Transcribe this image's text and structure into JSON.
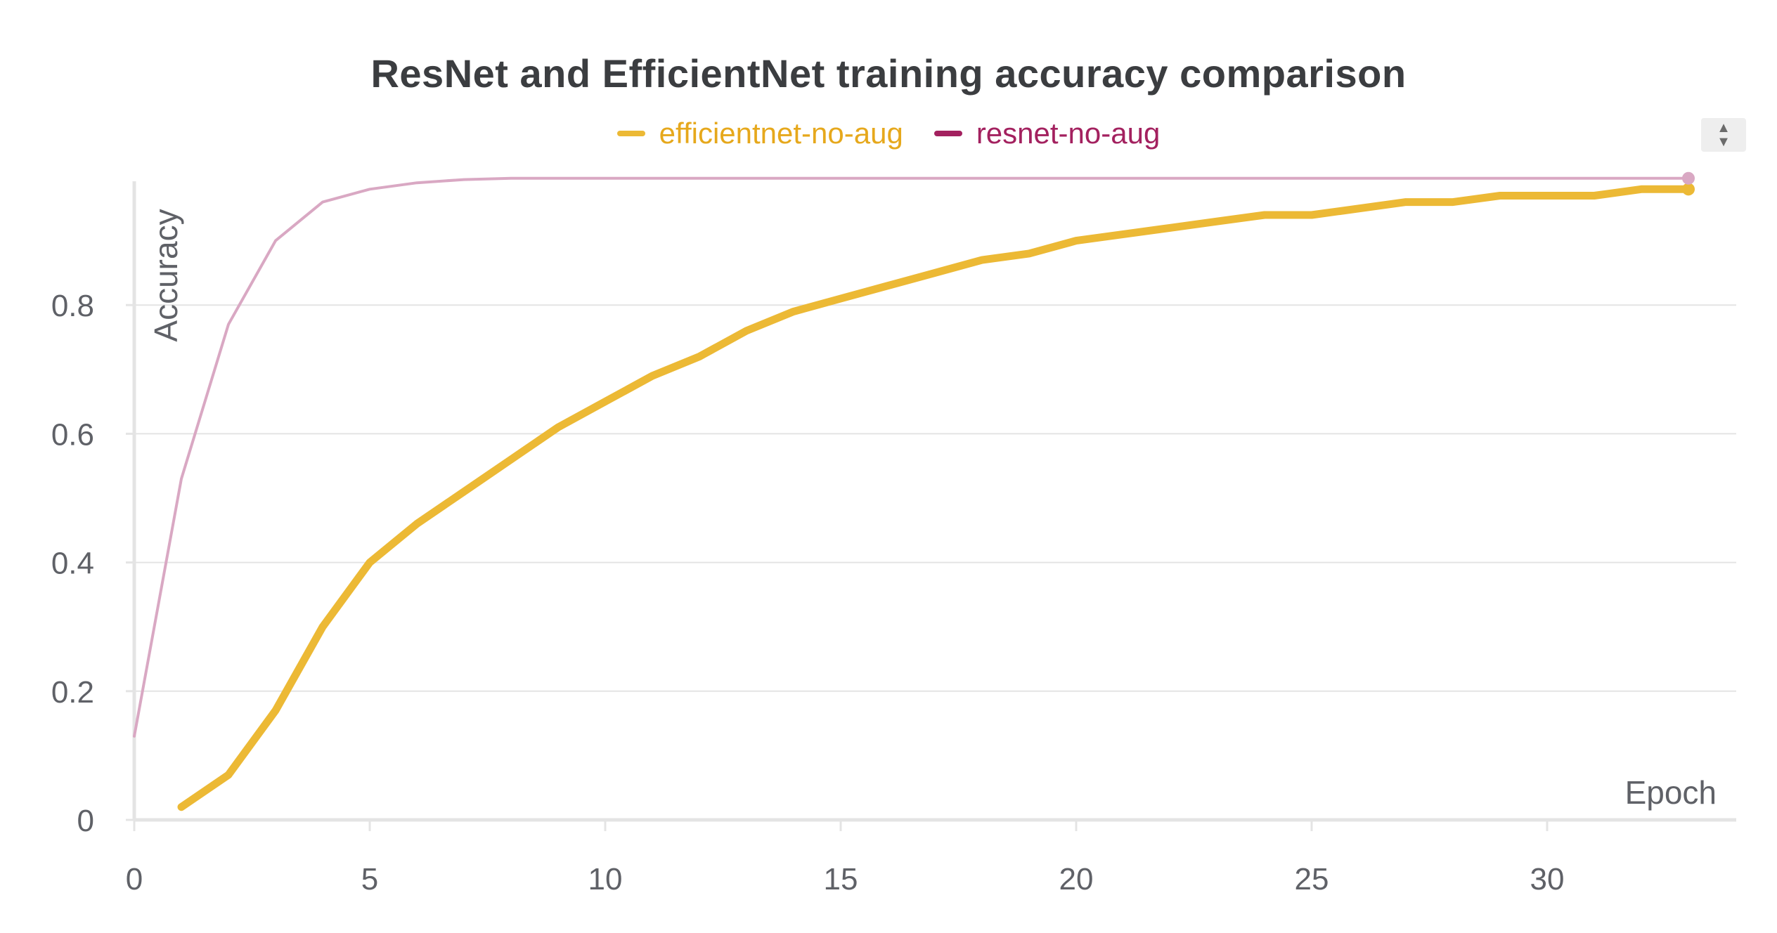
{
  "chart_data": {
    "type": "line",
    "title": "ResNet and EfficientNet training accuracy comparison",
    "xlabel": "Epoch",
    "ylabel": "Accuracy",
    "xlim": [
      0,
      34
    ],
    "ylim": [
      0,
      1
    ],
    "xticks": [
      0,
      5,
      10,
      15,
      20,
      25,
      30
    ],
    "yticks": [
      0,
      0.2,
      0.4,
      0.6,
      0.8
    ],
    "grid": true,
    "legend_position": "top",
    "series": [
      {
        "name": "efficientnet-no-aug",
        "color": "#e6a81c",
        "line_color": "#ecb935",
        "x": [
          1,
          2,
          3,
          4,
          5,
          6,
          7,
          8,
          9,
          10,
          11,
          12,
          13,
          14,
          15,
          16,
          17,
          18,
          19,
          20,
          21,
          22,
          23,
          24,
          25,
          26,
          27,
          28,
          29,
          30,
          31,
          32,
          33
        ],
        "values": [
          0.02,
          0.07,
          0.17,
          0.3,
          0.4,
          0.46,
          0.51,
          0.56,
          0.61,
          0.65,
          0.69,
          0.72,
          0.76,
          0.79,
          0.81,
          0.83,
          0.85,
          0.87,
          0.88,
          0.9,
          0.91,
          0.92,
          0.93,
          0.94,
          0.94,
          0.95,
          0.96,
          0.96,
          0.97,
          0.97,
          0.97,
          0.98,
          0.98
        ]
      },
      {
        "name": "resnet-no-aug",
        "color": "#a3215f",
        "line_color": "#d9a8c3",
        "x": [
          0,
          1,
          2,
          3,
          4,
          5,
          6,
          7,
          8,
          9,
          10,
          11,
          12,
          13,
          14,
          15,
          16,
          17,
          18,
          19,
          20,
          21,
          22,
          23,
          24,
          25,
          26,
          27,
          28,
          29,
          30,
          31,
          32,
          33
        ],
        "values": [
          0.13,
          0.53,
          0.77,
          0.9,
          0.96,
          0.98,
          0.99,
          0.995,
          0.997,
          0.997,
          0.997,
          0.997,
          0.997,
          0.997,
          0.997,
          0.997,
          0.997,
          0.997,
          0.997,
          0.997,
          0.997,
          0.997,
          0.997,
          0.997,
          0.997,
          0.997,
          0.997,
          0.997,
          0.997,
          0.997,
          0.997,
          0.997,
          0.997,
          0.997
        ]
      }
    ]
  }
}
